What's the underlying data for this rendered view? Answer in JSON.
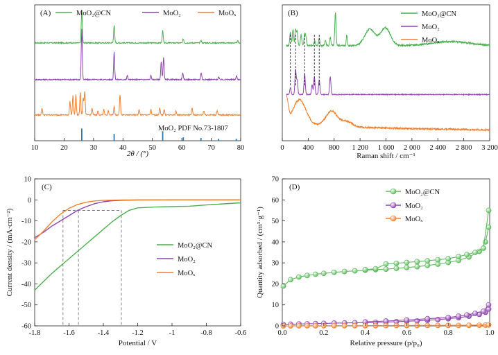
{
  "chart_data": [
    {
      "panel": "A",
      "type": "line",
      "xlabel": "2θ / (°)",
      "xlim": [
        10,
        80
      ],
      "xticks": [
        10,
        20,
        30,
        40,
        50,
        60,
        70,
        80
      ],
      "grid": false,
      "legend_position": "top",
      "series": [
        {
          "name": "MoO₂@CN",
          "color": "#4caf50",
          "offset": 0.72,
          "peaks": [
            [
              26.0,
              0.24
            ],
            [
              37.0,
              0.13
            ],
            [
              53.5,
              0.09
            ],
            [
              60.5,
              0.03
            ],
            [
              66.5,
              0.02
            ],
            [
              79.0,
              0.015
            ]
          ]
        },
        {
          "name": "MoO₂",
          "color": "#8e44ad",
          "offset": 0.45,
          "peaks": [
            [
              26.0,
              0.37
            ],
            [
              37.0,
              0.2
            ],
            [
              41.5,
              0.03
            ],
            [
              49.5,
              0.03
            ],
            [
              53.0,
              0.13
            ],
            [
              53.8,
              0.16
            ],
            [
              60.3,
              0.05
            ],
            [
              66.6,
              0.05
            ],
            [
              72.5,
              0.02
            ],
            [
              78.6,
              0.03
            ]
          ]
        },
        {
          "name": "MoOₓ",
          "color": "#f07f2e",
          "offset": 0.19,
          "peaks": [
            [
              12.5,
              0.05
            ],
            [
              22.0,
              0.1
            ],
            [
              23.0,
              0.14
            ],
            [
              24.0,
              0.15
            ],
            [
              25.5,
              0.17
            ],
            [
              26.5,
              0.12
            ],
            [
              27.0,
              0.17
            ],
            [
              29.5,
              0.05
            ],
            [
              31.5,
              0.03
            ],
            [
              33.5,
              0.04
            ],
            [
              35.0,
              0.03
            ],
            [
              37.0,
              0.06
            ],
            [
              39.0,
              0.15
            ],
            [
              45.5,
              0.04
            ],
            [
              49.5,
              0.04
            ],
            [
              52.5,
              0.05
            ],
            [
              54.0,
              0.04
            ],
            [
              58.0,
              0.03
            ],
            [
              63.5,
              0.05
            ],
            [
              67.5,
              0.03
            ],
            [
              72.0,
              0.03
            ]
          ]
        }
      ],
      "reference": {
        "label": "MoO₂ PDF No.73-1807",
        "color": "#2a7ab8",
        "lines": [
          [
            26.0,
            0.09
          ],
          [
            37.0,
            0.05
          ],
          [
            53.5,
            0.07
          ],
          [
            60.5,
            0.025
          ],
          [
            66.5,
            0.02
          ],
          [
            72.5,
            0.015
          ],
          [
            78.5,
            0.015
          ]
        ]
      }
    },
    {
      "panel": "B",
      "type": "line",
      "xlabel": "Raman shift / cm⁻¹",
      "xlim": [
        0,
        3200
      ],
      "xticks": [
        0,
        400,
        800,
        1200,
        1600,
        2000,
        2400,
        2800,
        3200
      ],
      "xtick_labels": [
        "0",
        "400",
        "800",
        "1 200",
        "1 600",
        "2 000",
        "2 400",
        "2 800",
        "3 200"
      ],
      "grid": false,
      "legend_position": "top-right",
      "series": [
        {
          "name": "MoO₂@CN",
          "color": "#4caf50",
          "offset": 0.7,
          "peaks": [
            [
              125,
              0.1
            ],
            [
              165,
              0.12
            ],
            [
              205,
              0.12
            ],
            [
              230,
              0.1
            ],
            [
              290,
              0.08
            ],
            [
              345,
              0.08
            ],
            [
              365,
              0.06
            ],
            [
              500,
              0.04
            ],
            [
              570,
              0.05
            ],
            [
              665,
              0.04
            ],
            [
              740,
              0.06
            ],
            [
              820,
              0.24
            ],
            [
              995,
              0.08
            ],
            [
              1350,
              0.12
            ],
            [
              1590,
              0.13
            ]
          ]
        },
        {
          "name": "MoO₂",
          "color": "#8e44ad",
          "offset": 0.34,
          "peaks": [
            [
              125,
              0.05
            ],
            [
              205,
              0.18
            ],
            [
              230,
              0.1
            ],
            [
              345,
              0.15
            ],
            [
              460,
              0.07
            ],
            [
              495,
              0.13
            ],
            [
              570,
              0.11
            ],
            [
              740,
              0.13
            ]
          ]
        },
        {
          "name": "MoOₓ",
          "color": "#f07f2e",
          "offset": 0.1,
          "peaks": [
            [
              60,
              0.18
            ],
            [
              240,
              0.12
            ],
            [
              320,
              0.07
            ],
            [
              760,
              0.11
            ],
            [
              990,
              0.04
            ]
          ]
        }
      ],
      "dashed_markers": [
        125,
        205,
        345,
        495,
        570
      ]
    },
    {
      "panel": "C",
      "type": "line",
      "xlabel": "Potential / V",
      "ylabel": "Current density / (mA·cm⁻²)",
      "xlim": [
        -1.8,
        -0.6
      ],
      "ylim": [
        -60,
        10
      ],
      "xticks": [
        -1.8,
        -1.6,
        -1.4,
        -1.2,
        -1.0,
        -0.8,
        -0.6
      ],
      "yticks": [
        -60,
        -50,
        -40,
        -30,
        -20,
        -10,
        0,
        10
      ],
      "grid": false,
      "legend_position": "right",
      "series": [
        {
          "name": "MoO₂@CN",
          "color": "#4caf50",
          "x": [
            -1.8,
            -1.75,
            -1.7,
            -1.65,
            -1.6,
            -1.55,
            -1.5,
            -1.45,
            -1.4,
            -1.35,
            -1.3,
            -1.25,
            -1.2,
            -1.1,
            -1.0,
            -0.9,
            -0.8,
            -0.7,
            -0.6
          ],
          "y": [
            -43,
            -39,
            -35,
            -31.5,
            -28,
            -24.5,
            -21,
            -17.5,
            -14,
            -10.5,
            -7.5,
            -5,
            -3.8,
            -3.4,
            -3.2,
            -3,
            -2.4,
            -1.9,
            -1.4
          ]
        },
        {
          "name": "MoO₂",
          "color": "#8e44ad",
          "x": [
            -1.8,
            -1.75,
            -1.7,
            -1.65,
            -1.6,
            -1.55,
            -1.5,
            -1.45,
            -1.4,
            -1.35,
            -1.3,
            -1.2,
            -1.0,
            -0.8,
            -0.6
          ],
          "y": [
            -18,
            -15.5,
            -12.5,
            -10,
            -7.5,
            -5,
            -3.2,
            -1.8,
            -0.9,
            -0.4,
            -0.2,
            -0.05,
            0,
            0,
            0
          ]
        },
        {
          "name": "MoOₓ",
          "color": "#f07f2e",
          "x": [
            -1.8,
            -1.75,
            -1.7,
            -1.65,
            -1.6,
            -1.55,
            -1.5,
            -1.45,
            -1.4,
            -1.3,
            -1.2,
            -1.0,
            -0.8,
            -0.6
          ],
          "y": [
            -19,
            -15,
            -10.5,
            -6.8,
            -4,
            -2.2,
            -1.1,
            -0.5,
            -0.2,
            -0.05,
            0,
            0,
            0,
            0
          ]
        }
      ],
      "reference_lines": {
        "y": -5,
        "x": [
          -1.635,
          -1.545,
          -1.295
        ]
      }
    },
    {
      "panel": "D",
      "type": "scatter",
      "xlabel": "Relative pressure (p/p₀)",
      "ylabel": "Quantity adsorbed / (cm³·g⁻¹)",
      "xlim": [
        0,
        1
      ],
      "ylim": [
        0,
        70
      ],
      "xticks": [
        0,
        0.2,
        0.4,
        0.6,
        0.8,
        1.0
      ],
      "xtick_labels": [
        "0.0",
        "0.2",
        "0.4",
        "0.6",
        "0.8",
        "1.0"
      ],
      "yticks": [
        0,
        10,
        20,
        30,
        40,
        50,
        60,
        70
      ],
      "grid": false,
      "legend_position": "top-right",
      "series": [
        {
          "name": "MoO₂@CN",
          "color": "#5cb85c",
          "adsorption_x": [
            0.005,
            0.04,
            0.08,
            0.12,
            0.16,
            0.2,
            0.25,
            0.3,
            0.35,
            0.4,
            0.45,
            0.5,
            0.55,
            0.6,
            0.65,
            0.7,
            0.75,
            0.8,
            0.85,
            0.9,
            0.95,
            0.98,
            0.995
          ],
          "adsorption_y": [
            19,
            22,
            23.3,
            24,
            24.6,
            25,
            25.5,
            25.9,
            26.2,
            26.5,
            26.8,
            27,
            27.4,
            27.8,
            28.2,
            28.8,
            29.4,
            30.2,
            31.2,
            32.8,
            35.5,
            40,
            47
          ],
          "desorption_x": [
            0.995,
            0.97,
            0.93,
            0.89,
            0.85,
            0.8,
            0.75,
            0.7,
            0.65,
            0.6,
            0.55,
            0.5,
            0.45,
            0.4
          ],
          "desorption_y": [
            55,
            37,
            35,
            34,
            33,
            32,
            31.5,
            31,
            30.6,
            30.2,
            29.8,
            29.5,
            27.2,
            26.8
          ]
        },
        {
          "name": "MoO₂",
          "color": "#8e44ad",
          "adsorption_x": [
            0.005,
            0.04,
            0.08,
            0.12,
            0.16,
            0.2,
            0.25,
            0.3,
            0.35,
            0.4,
            0.45,
            0.5,
            0.55,
            0.6,
            0.65,
            0.7,
            0.75,
            0.8,
            0.85,
            0.9,
            0.95,
            0.98,
            0.995
          ],
          "adsorption_y": [
            0.6,
            0.8,
            0.9,
            1,
            1.1,
            1.2,
            1.3,
            1.4,
            1.5,
            1.6,
            1.7,
            1.8,
            2,
            2.2,
            2.4,
            2.7,
            3,
            3.4,
            3.9,
            4.6,
            5.5,
            6.5,
            8
          ],
          "desorption_x": [
            0.995,
            0.97,
            0.93,
            0.89,
            0.85,
            0.8,
            0.7,
            0.6,
            0.5,
            0.4
          ],
          "desorption_y": [
            10,
            7,
            6,
            5.2,
            4.6,
            4,
            3.4,
            2.8,
            2.3,
            1.9
          ]
        },
        {
          "name": "MoOₓ",
          "color": "#f07f2e",
          "adsorption_x": [
            0.005,
            0.04,
            0.08,
            0.12,
            0.16,
            0.2,
            0.25,
            0.3,
            0.35,
            0.4,
            0.45,
            0.5,
            0.55,
            0.6,
            0.65,
            0.7,
            0.75,
            0.8,
            0.85,
            0.9,
            0.95,
            0.98,
            0.995
          ],
          "adsorption_y": [
            0,
            0,
            0.05,
            0.05,
            0.05,
            0.1,
            0.1,
            0.1,
            0.1,
            0.1,
            0.1,
            0.15,
            0.15,
            0.15,
            0.15,
            0.2,
            0.2,
            0.2,
            0.2,
            0.25,
            0.3,
            0.35,
            0.4
          ],
          "desorption_x": [
            0.995,
            0.9,
            0.8,
            0.6,
            0.4
          ],
          "desorption_y": [
            0.5,
            0.3,
            0.25,
            0.2,
            0.15
          ]
        }
      ]
    }
  ]
}
